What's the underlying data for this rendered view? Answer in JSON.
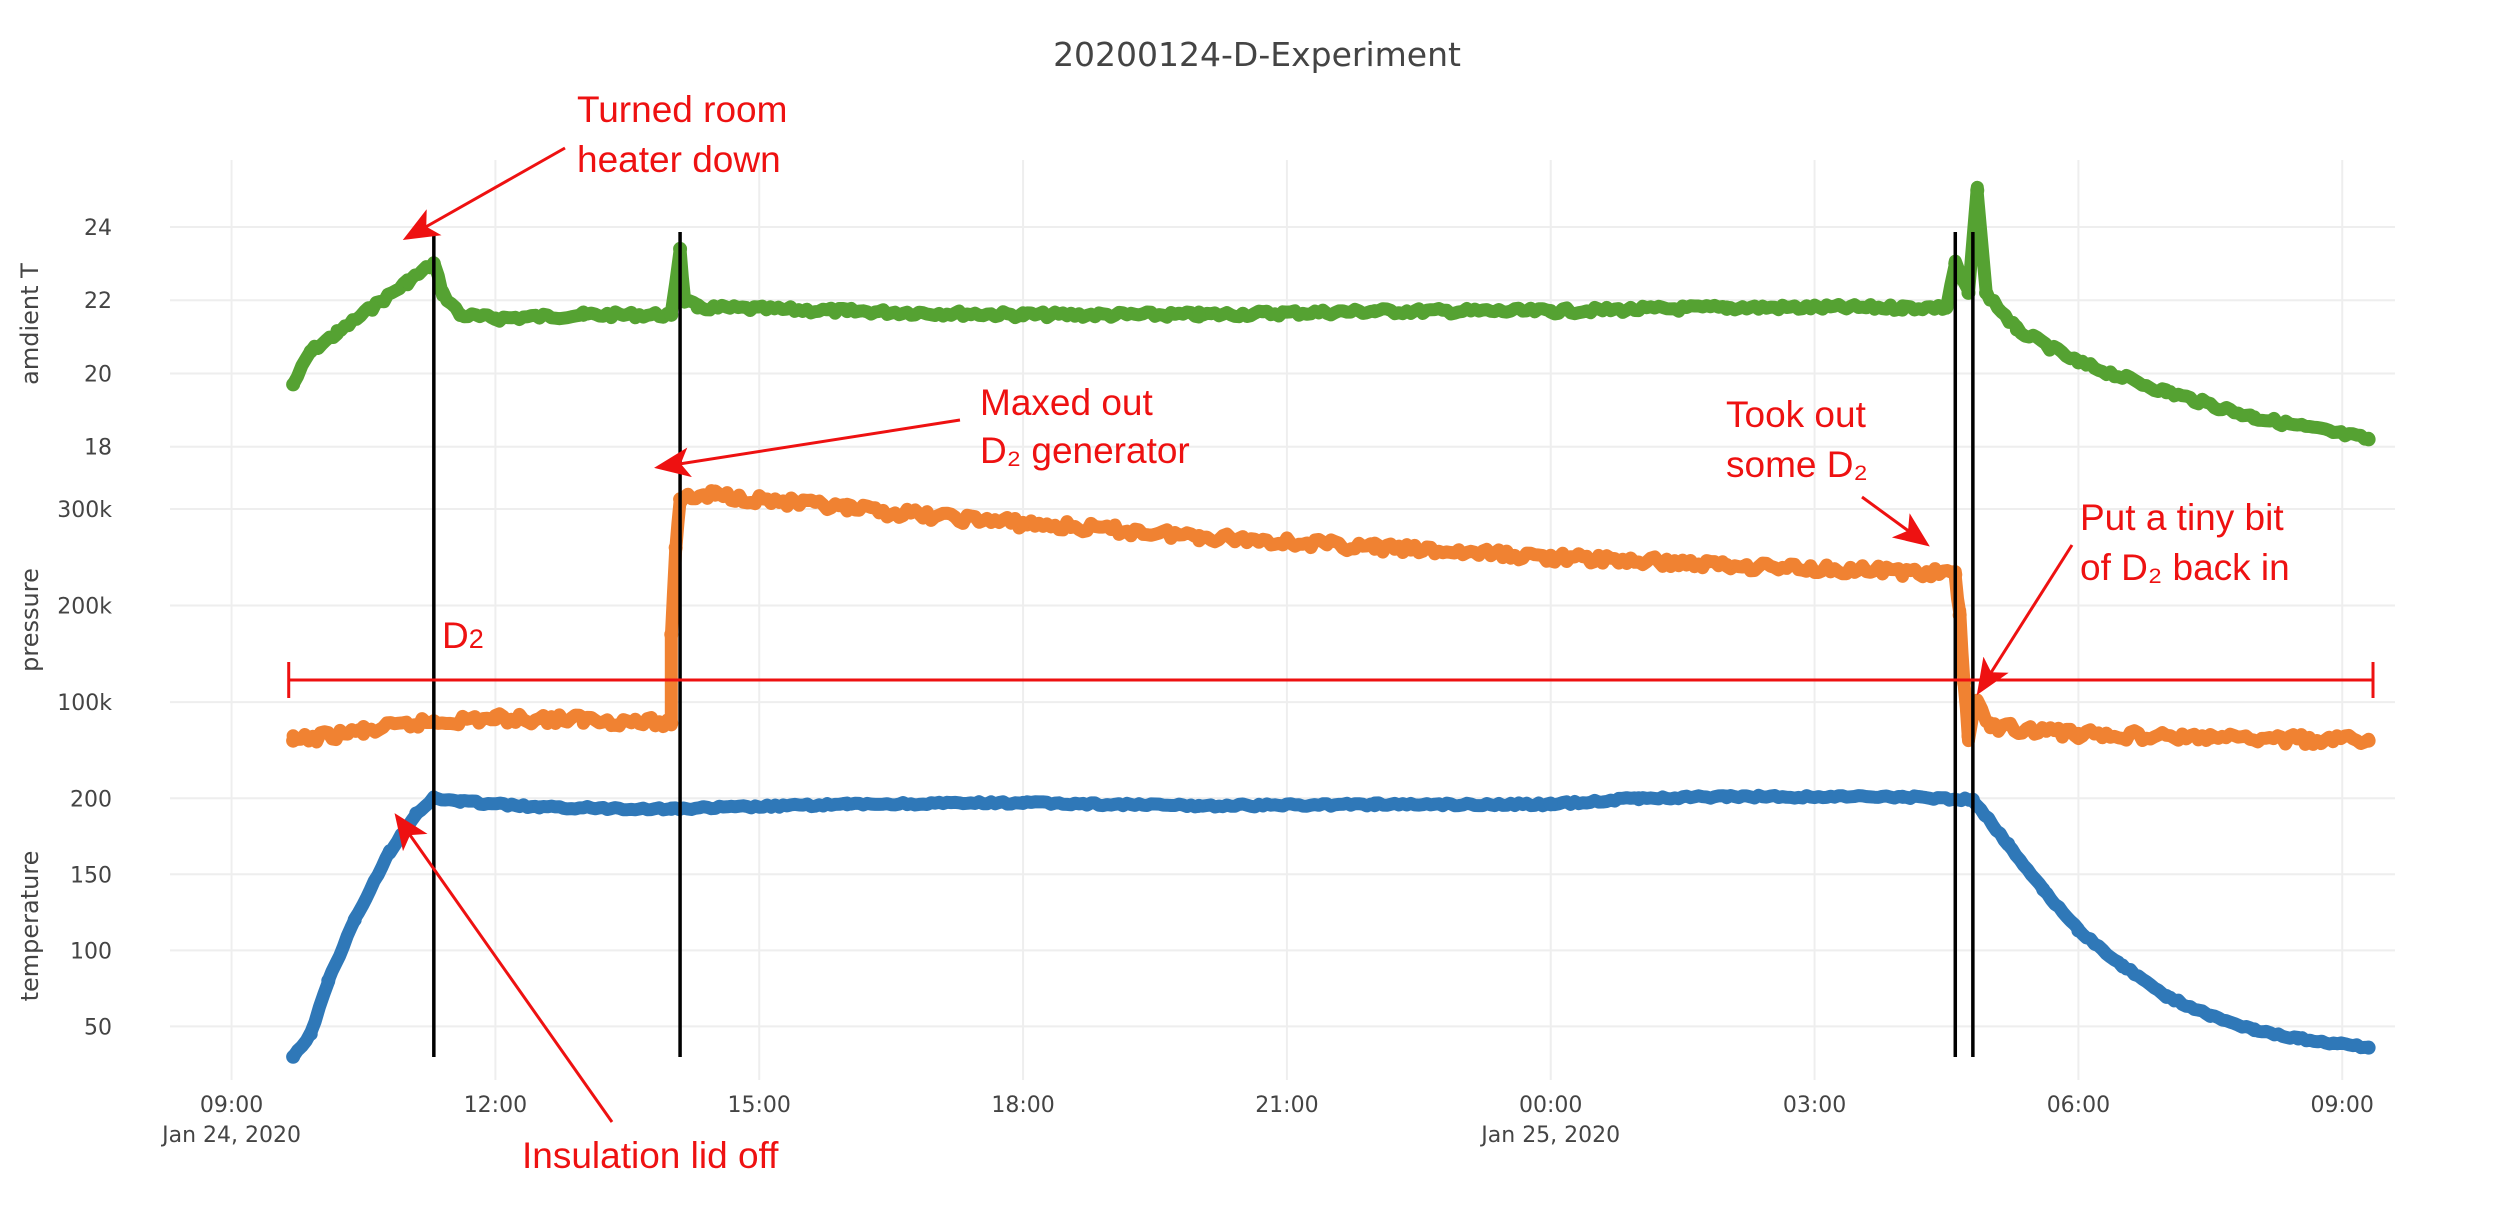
{
  "chart_data": {
    "type": "line",
    "title": "20200124-D-Experiment",
    "x_axis": {
      "ticks": [
        {
          "x": 9,
          "label": "09:00",
          "sublabel": "Jan 24, 2020"
        },
        {
          "x": 12,
          "label": "12:00",
          "sublabel": ""
        },
        {
          "x": 15,
          "label": "15:00",
          "sublabel": ""
        },
        {
          "x": 18,
          "label": "18:00",
          "sublabel": ""
        },
        {
          "x": 21,
          "label": "21:00",
          "sublabel": ""
        },
        {
          "x": 24,
          "label": "00:00",
          "sublabel": "Jan 25, 2020"
        },
        {
          "x": 27,
          "label": "03:00",
          "sublabel": ""
        },
        {
          "x": 30,
          "label": "06:00",
          "sublabel": ""
        },
        {
          "x": 33,
          "label": "09:00",
          "sublabel": ""
        }
      ],
      "range": [
        8.3,
        33.6
      ],
      "unit": "hours since Jan 24, 2020 00:00"
    },
    "panels": [
      {
        "id": "ambient",
        "ylabel": "amdient T",
        "ticks": [
          18,
          20,
          22,
          24
        ],
        "range": [
          17.5,
          25.2
        ],
        "color": "#55a232",
        "series": [
          {
            "x": 9.7,
            "y": 19.7
          },
          {
            "x": 9.9,
            "y": 20.6
          },
          {
            "x": 10.2,
            "y": 21.1
          },
          {
            "x": 10.6,
            "y": 21.8
          },
          {
            "x": 11.0,
            "y": 22.5
          },
          {
            "x": 11.3,
            "y": 23.0
          },
          {
            "x": 11.4,
            "y": 22.2
          },
          {
            "x": 11.6,
            "y": 21.6
          },
          {
            "x": 12.0,
            "y": 21.5
          },
          {
            "x": 13.0,
            "y": 21.6
          },
          {
            "x": 14.0,
            "y": 21.6
          },
          {
            "x": 14.1,
            "y": 23.4
          },
          {
            "x": 14.15,
            "y": 22.0
          },
          {
            "x": 14.3,
            "y": 21.8
          },
          {
            "x": 16.0,
            "y": 21.7
          },
          {
            "x": 18.0,
            "y": 21.6
          },
          {
            "x": 20.0,
            "y": 21.6
          },
          {
            "x": 22.0,
            "y": 21.7
          },
          {
            "x": 24.0,
            "y": 21.7
          },
          {
            "x": 26.0,
            "y": 21.8
          },
          {
            "x": 28.0,
            "y": 21.8
          },
          {
            "x": 28.5,
            "y": 21.8
          },
          {
            "x": 28.6,
            "y": 23.0
          },
          {
            "x": 28.75,
            "y": 22.2
          },
          {
            "x": 28.85,
            "y": 25.0
          },
          {
            "x": 28.95,
            "y": 22.2
          },
          {
            "x": 29.3,
            "y": 21.2
          },
          {
            "x": 30.0,
            "y": 20.3
          },
          {
            "x": 31.0,
            "y": 19.5
          },
          {
            "x": 32.0,
            "y": 18.8
          },
          {
            "x": 33.3,
            "y": 18.2
          }
        ]
      },
      {
        "id": "pressure",
        "ylabel": "pressure",
        "ticks": [
          {
            "value": 100000,
            "label": "100k"
          },
          {
            "value": 200000,
            "label": "200k"
          },
          {
            "value": 300000,
            "label": "300k"
          }
        ],
        "range": [
          40000,
          330000
        ],
        "color": "#f08232",
        "series": [
          {
            "x": 9.7,
            "y": 60000
          },
          {
            "x": 10.5,
            "y": 70000
          },
          {
            "x": 11.3,
            "y": 80000
          },
          {
            "x": 12.0,
            "y": 83000
          },
          {
            "x": 13.0,
            "y": 82000
          },
          {
            "x": 14.0,
            "y": 78000
          },
          {
            "x": 14.0,
            "y": 170000
          },
          {
            "x": 14.05,
            "y": 260000
          },
          {
            "x": 14.1,
            "y": 310000
          },
          {
            "x": 14.5,
            "y": 315000
          },
          {
            "x": 16.0,
            "y": 300000
          },
          {
            "x": 18.0,
            "y": 285000
          },
          {
            "x": 20.0,
            "y": 272000
          },
          {
            "x": 22.0,
            "y": 260000
          },
          {
            "x": 24.0,
            "y": 250000
          },
          {
            "x": 26.0,
            "y": 242000
          },
          {
            "x": 28.0,
            "y": 235000
          },
          {
            "x": 28.6,
            "y": 232000
          },
          {
            "x": 28.65,
            "y": 190000
          },
          {
            "x": 28.7,
            "y": 120000
          },
          {
            "x": 28.75,
            "y": 65000
          },
          {
            "x": 28.85,
            "y": 100000
          },
          {
            "x": 29.0,
            "y": 75000
          },
          {
            "x": 30.0,
            "y": 67000
          },
          {
            "x": 31.5,
            "y": 63000
          },
          {
            "x": 33.3,
            "y": 60000
          }
        ]
      },
      {
        "id": "temperature",
        "ylabel": "temperature",
        "ticks": [
          50,
          100,
          150,
          200
        ],
        "range": [
          20,
          212
        ],
        "color": "#2f78b8",
        "series": [
          {
            "x": 9.7,
            "y": 30
          },
          {
            "x": 9.9,
            "y": 45
          },
          {
            "x": 10.1,
            "y": 80
          },
          {
            "x": 10.4,
            "y": 120
          },
          {
            "x": 10.8,
            "y": 165
          },
          {
            "x": 11.1,
            "y": 190
          },
          {
            "x": 11.3,
            "y": 200
          },
          {
            "x": 11.6,
            "y": 198
          },
          {
            "x": 12.5,
            "y": 194
          },
          {
            "x": 14.0,
            "y": 193
          },
          {
            "x": 16.0,
            "y": 196
          },
          {
            "x": 18.0,
            "y": 197
          },
          {
            "x": 20.0,
            "y": 195
          },
          {
            "x": 22.0,
            "y": 196
          },
          {
            "x": 24.0,
            "y": 196
          },
          {
            "x": 25.0,
            "y": 200
          },
          {
            "x": 26.0,
            "y": 201
          },
          {
            "x": 28.0,
            "y": 201
          },
          {
            "x": 28.8,
            "y": 199
          },
          {
            "x": 29.2,
            "y": 170
          },
          {
            "x": 29.6,
            "y": 140
          },
          {
            "x": 30.0,
            "y": 113
          },
          {
            "x": 30.5,
            "y": 90
          },
          {
            "x": 31.0,
            "y": 70
          },
          {
            "x": 31.5,
            "y": 57
          },
          {
            "x": 32.0,
            "y": 48
          },
          {
            "x": 32.5,
            "y": 42
          },
          {
            "x": 33.3,
            "y": 36
          }
        ]
      }
    ],
    "event_lines": [
      11.3,
      14.1,
      28.6,
      28.8
    ],
    "d2_range": {
      "x_start": 9.65,
      "x_end": 33.35,
      "label": "D",
      "sub": "2"
    },
    "grid": true,
    "legend": "none"
  },
  "annotations": [
    {
      "id": "turned-room-heater",
      "lines": [
        "Turned room",
        "heater down"
      ]
    },
    {
      "id": "maxed-out",
      "lines": [
        "Maxed out",
        "D₂ generator"
      ]
    },
    {
      "id": "took-out",
      "lines": [
        "Took out",
        "some D₂"
      ]
    },
    {
      "id": "put-tiny-bit",
      "lines": [
        "Put a tiny bit",
        "of D₂ back in"
      ]
    },
    {
      "id": "insulation-lid",
      "lines": [
        "Insulation lid off"
      ]
    }
  ],
  "annotation_color": "#ee1111"
}
